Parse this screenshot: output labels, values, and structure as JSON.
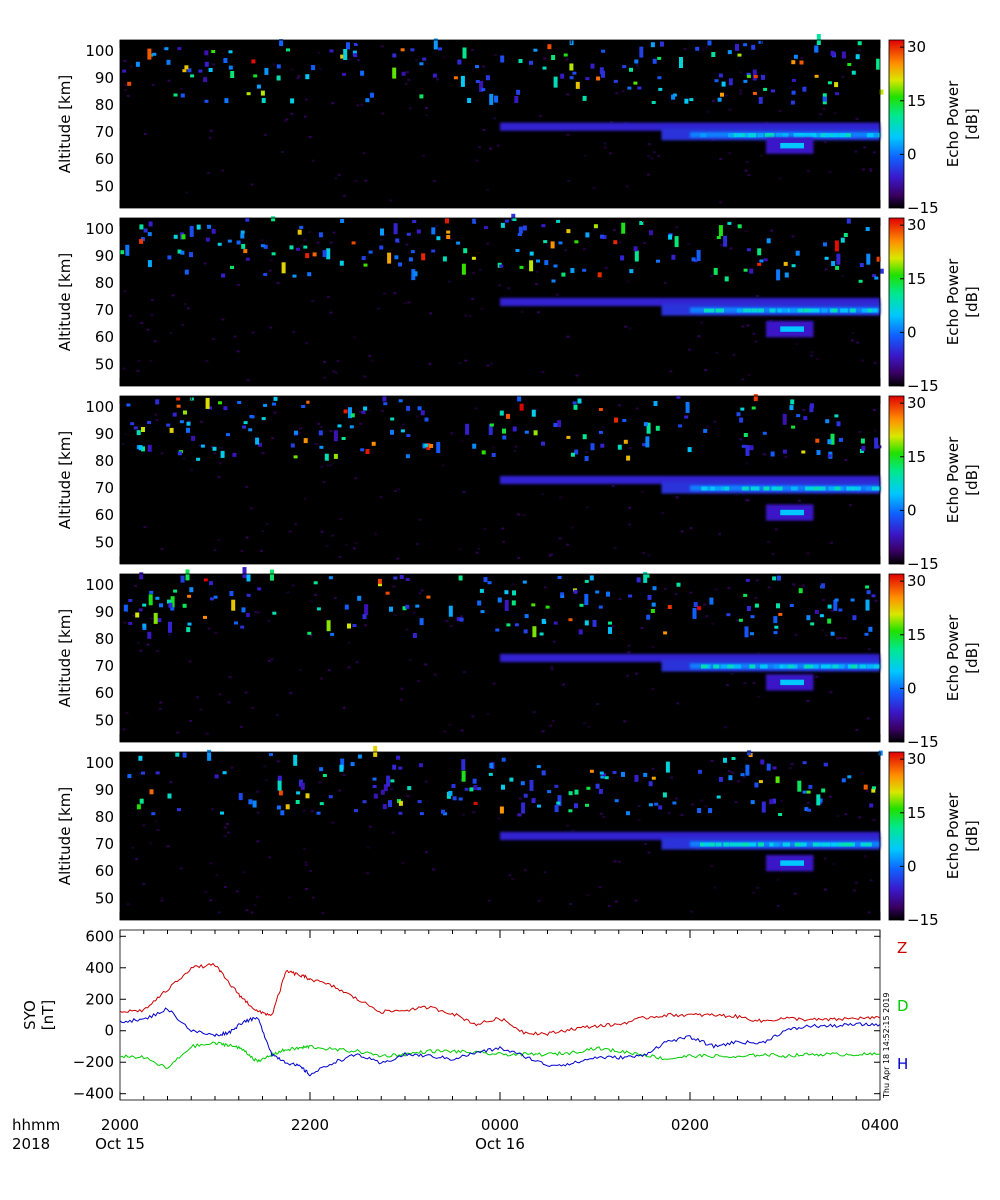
{
  "chart_data": [
    {
      "type": "heatmap",
      "panel": 1,
      "ylabel": "Altitude [km]",
      "yticks": [
        "50",
        "60",
        "70",
        "80",
        "90",
        "100"
      ],
      "ylim": [
        42,
        104
      ],
      "colorbar": {
        "label": "Echo Power",
        "unit": "[dB]",
        "ticks": [
          "30",
          "15",
          "0",
          "−15"
        ],
        "range": [
          -15,
          32
        ]
      },
      "features": [
        {
          "description": "echo layer",
          "x_start": "0000",
          "x_end": "0400",
          "altitude_km": [
            62,
            73
          ],
          "peak_db": 5
        },
        {
          "description": "sporadic echoes",
          "x_start": "2000",
          "x_end": "0400",
          "altitude_km": [
            78,
            104
          ]
        }
      ]
    },
    {
      "type": "heatmap",
      "panel": 2,
      "ylabel": "Altitude [km]",
      "yticks": [
        "50",
        "60",
        "70",
        "80",
        "90",
        "100"
      ],
      "ylim": [
        42,
        104
      ],
      "colorbar": {
        "label": "Echo Power",
        "unit": "[dB]",
        "ticks": [
          "30",
          "15",
          "0",
          "−15"
        ],
        "range": [
          -15,
          32
        ]
      },
      "features": [
        {
          "description": "echo layer",
          "x_start": "0000",
          "x_end": "0400",
          "altitude_km": [
            60,
            74
          ],
          "peak_db": 5
        },
        {
          "description": "sporadic echoes",
          "x_start": "2000",
          "x_end": "0400",
          "altitude_km": [
            78,
            104
          ]
        }
      ]
    },
    {
      "type": "heatmap",
      "panel": 3,
      "ylabel": "Altitude [km]",
      "yticks": [
        "50",
        "60",
        "70",
        "80",
        "90",
        "100"
      ],
      "ylim": [
        42,
        104
      ],
      "colorbar": {
        "label": "Echo Power",
        "unit": "[dB]",
        "ticks": [
          "30",
          "15",
          "0",
          "−15"
        ],
        "range": [
          -15,
          32
        ]
      },
      "features": [
        {
          "description": "echo layer",
          "x_start": "0000",
          "x_end": "0400",
          "altitude_km": [
            58,
            74
          ],
          "peak_db": 6
        },
        {
          "description": "sporadic echoes",
          "x_start": "2000",
          "x_end": "0400",
          "altitude_km": [
            78,
            104
          ]
        }
      ]
    },
    {
      "type": "heatmap",
      "panel": 4,
      "ylabel": "Altitude [km]",
      "yticks": [
        "50",
        "60",
        "70",
        "80",
        "90",
        "100"
      ],
      "ylim": [
        42,
        104
      ],
      "colorbar": {
        "label": "Echo Power",
        "unit": "[dB]",
        "ticks": [
          "30",
          "15",
          "0",
          "−15"
        ],
        "range": [
          -15,
          32
        ]
      },
      "features": [
        {
          "description": "echo layer",
          "x_start": "0000",
          "x_end": "0400",
          "altitude_km": [
            61,
            74
          ],
          "peak_db": 5
        },
        {
          "description": "sporadic echoes",
          "x_start": "2000",
          "x_end": "0400",
          "altitude_km": [
            78,
            104
          ]
        }
      ]
    },
    {
      "type": "heatmap",
      "panel": 5,
      "ylabel": "Altitude [km]",
      "yticks": [
        "50",
        "60",
        "70",
        "80",
        "90",
        "100"
      ],
      "ylim": [
        42,
        104
      ],
      "colorbar": {
        "label": "Echo Power",
        "unit": "[dB]",
        "ticks": [
          "30",
          "15",
          "0",
          "−15"
        ],
        "range": [
          -15,
          32
        ]
      },
      "features": [
        {
          "description": "echo layer",
          "x_start": "0000",
          "x_end": "0400",
          "altitude_km": [
            60,
            74
          ],
          "peak_db": 6
        },
        {
          "description": "sporadic echoes",
          "x_start": "2000",
          "x_end": "0400",
          "altitude_km": [
            78,
            104
          ]
        }
      ]
    },
    {
      "type": "line",
      "ylabel": "SYO",
      "yunit": "[nT]",
      "ylim": [
        -440,
        640
      ],
      "yticks": [
        "600",
        "400",
        "200",
        "0",
        "−200",
        "−400"
      ],
      "x_hours": [
        0,
        0.25,
        0.5,
        0.75,
        1,
        1.15,
        1.3,
        1.45,
        1.6,
        1.75,
        1.9,
        2,
        2.25,
        2.5,
        2.75,
        3,
        3.25,
        3.5,
        3.75,
        4,
        4.25,
        4.5,
        4.75,
        5,
        5.25,
        5.5,
        5.75,
        6,
        6.25,
        6.5,
        6.75,
        7,
        7.25,
        7.5,
        7.75,
        8
      ],
      "series": [
        {
          "name": "Z",
          "color": "#cc0000",
          "values": [
            120,
            130,
            260,
            400,
            420,
            300,
            200,
            120,
            100,
            380,
            350,
            330,
            280,
            200,
            120,
            130,
            150,
            110,
            40,
            80,
            -10,
            -20,
            10,
            30,
            40,
            80,
            100,
            100,
            100,
            90,
            60,
            80,
            70,
            70,
            80,
            80
          ]
        },
        {
          "name": "D",
          "color": "#00cc00",
          "values": [
            -160,
            -170,
            -240,
            -100,
            -80,
            -90,
            -120,
            -200,
            -150,
            -120,
            -110,
            -100,
            -120,
            -130,
            -160,
            -150,
            -130,
            -130,
            -140,
            -150,
            -150,
            -150,
            -140,
            -110,
            -130,
            -150,
            -180,
            -160,
            -160,
            -170,
            -150,
            -160,
            -150,
            -150,
            -150,
            -150
          ]
        },
        {
          "name": "H",
          "color": "#0000cc",
          "values": [
            60,
            70,
            140,
            0,
            -30,
            -10,
            60,
            80,
            -150,
            -200,
            -230,
            -280,
            -200,
            -150,
            -210,
            -150,
            -160,
            -180,
            -140,
            -110,
            -160,
            -220,
            -210,
            -170,
            -170,
            -160,
            -70,
            -40,
            -100,
            -70,
            -80,
            0,
            30,
            30,
            40,
            40
          ]
        }
      ]
    }
  ],
  "x_axis": {
    "row1_label": "hhmm",
    "row2_label": "2018",
    "ticks": [
      {
        "label": "2000",
        "sub": "Oct 15",
        "hour": 0
      },
      {
        "label": "2200",
        "sub": "",
        "hour": 2
      },
      {
        "label": "0000",
        "sub": "Oct 16",
        "hour": 4
      },
      {
        "label": "0200",
        "sub": "",
        "hour": 6
      },
      {
        "label": "0400",
        "sub": "",
        "hour": 8
      }
    ]
  },
  "timestamp": "Thu Apr 18 14:52:15 2019"
}
